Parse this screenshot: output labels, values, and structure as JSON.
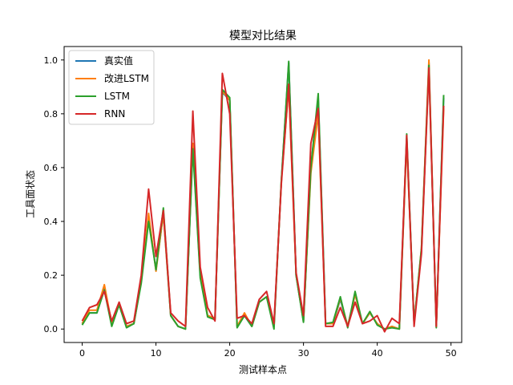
{
  "chart_data": {
    "type": "line",
    "title": "模型对比结果",
    "xlabel": "测试样本点",
    "ylabel": "工具面状态",
    "xlim": [
      -2.45,
      51.45
    ],
    "ylim": [
      -0.05,
      1.05
    ],
    "xticks": [
      0,
      10,
      20,
      30,
      40,
      50
    ],
    "yticks": [
      0.0,
      0.2,
      0.4,
      0.6,
      0.8,
      1.0
    ],
    "grid": false,
    "legend_position": "top-left",
    "x": [
      0,
      1,
      2,
      3,
      4,
      5,
      6,
      7,
      8,
      9,
      10,
      11,
      12,
      13,
      14,
      15,
      16,
      17,
      18,
      19,
      20,
      21,
      22,
      23,
      24,
      25,
      26,
      27,
      28,
      29,
      30,
      31,
      32,
      33,
      34,
      35,
      36,
      37,
      38,
      39,
      40,
      41,
      42,
      43,
      44,
      45,
      46,
      47,
      48,
      49
    ],
    "series": [
      {
        "name": "真实值",
        "color": "#1f77b4",
        "values": [
          0.02,
          0.06,
          0.06,
          0.15,
          0.02,
          0.09,
          0.01,
          0.02,
          0.18,
          0.42,
          0.22,
          0.43,
          0.05,
          0.01,
          0.0,
          0.68,
          0.2,
          0.05,
          0.04,
          0.88,
          0.85,
          0.01,
          0.05,
          0.01,
          0.1,
          0.12,
          0.01,
          0.55,
          0.99,
          0.2,
          0.03,
          0.6,
          0.86,
          0.02,
          0.02,
          0.11,
          0.01,
          0.13,
          0.02,
          0.06,
          0.02,
          0.0,
          0.01,
          0.0,
          0.71,
          0.02,
          0.29,
          0.99,
          0.01,
          0.86
        ]
      },
      {
        "name": "改进LSTM",
        "color": "#ff7f0e",
        "values": [
          0.02,
          0.07,
          0.07,
          0.165,
          0.02,
          0.09,
          0.01,
          0.02,
          0.18,
          0.43,
          0.215,
          0.43,
          0.05,
          0.01,
          0.0,
          0.69,
          0.21,
          0.05,
          0.04,
          0.885,
          0.85,
          0.01,
          0.06,
          0.01,
          0.1,
          0.12,
          0.01,
          0.55,
          0.9,
          0.2,
          0.03,
          0.58,
          0.8,
          0.02,
          0.02,
          0.115,
          0.01,
          0.13,
          0.02,
          0.06,
          0.02,
          0.0,
          0.01,
          0.0,
          0.7,
          0.02,
          0.3,
          1.0,
          0.01,
          0.82
        ]
      },
      {
        "name": "LSTM",
        "color": "#2ca02c",
        "values": [
          0.015,
          0.06,
          0.06,
          0.145,
          0.01,
          0.09,
          0.005,
          0.02,
          0.17,
          0.4,
          0.22,
          0.45,
          0.05,
          0.01,
          0.0,
          0.67,
          0.19,
          0.045,
          0.035,
          0.89,
          0.86,
          0.005,
          0.05,
          0.01,
          0.1,
          0.12,
          0.0,
          0.55,
          0.995,
          0.2,
          0.025,
          0.6,
          0.875,
          0.02,
          0.025,
          0.12,
          0.005,
          0.14,
          0.02,
          0.065,
          0.015,
          0.0,
          0.005,
          0.0,
          0.725,
          0.02,
          0.3,
          0.98,
          0.005,
          0.87
        ]
      },
      {
        "name": "RNN",
        "color": "#d62728",
        "values": [
          0.03,
          0.08,
          0.09,
          0.14,
          0.03,
          0.1,
          0.02,
          0.03,
          0.2,
          0.52,
          0.27,
          0.44,
          0.06,
          0.03,
          0.01,
          0.81,
          0.23,
          0.08,
          0.03,
          0.95,
          0.8,
          0.04,
          0.05,
          0.02,
          0.11,
          0.14,
          0.02,
          0.54,
          0.91,
          0.21,
          0.05,
          0.69,
          0.82,
          0.01,
          0.01,
          0.08,
          0.01,
          0.1,
          0.02,
          0.03,
          0.05,
          -0.01,
          0.04,
          0.02,
          0.72,
          0.01,
          0.28,
          0.97,
          0.01,
          0.83
        ]
      }
    ]
  }
}
